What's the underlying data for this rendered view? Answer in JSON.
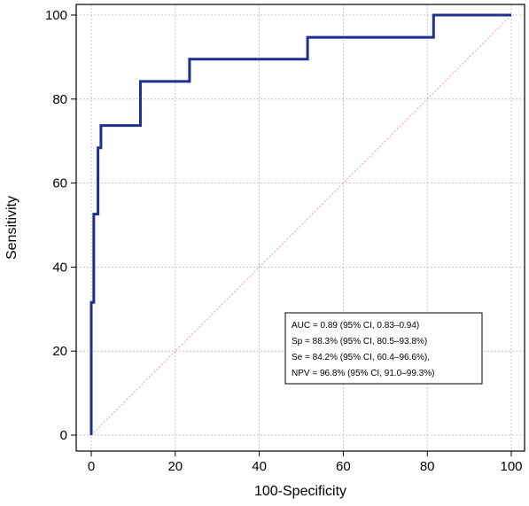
{
  "chart_data": {
    "type": "line",
    "title": "",
    "xlabel": "100-Specificity",
    "ylabel": "Sensitivity",
    "xlim": [
      0,
      100
    ],
    "ylim": [
      0,
      100
    ],
    "xticks": [
      0,
      20,
      40,
      60,
      80,
      100
    ],
    "yticks": [
      0,
      20,
      40,
      60,
      80,
      100
    ],
    "grid": true,
    "legend_placement": "bottom-right",
    "series": [
      {
        "color": "#1f2f8f",
        "style": "step",
        "x": [
          0,
          0,
          0.6,
          0.6,
          1.6,
          1.6,
          2.3,
          2.3,
          2.9,
          2.9,
          11.7,
          11.7,
          23.4,
          23.4,
          51.5,
          51.5,
          81.5,
          81.5,
          100
        ],
        "y": [
          0,
          31.6,
          31.6,
          52.6,
          52.6,
          68.4,
          68.4,
          73.7,
          73.7,
          73.7,
          73.7,
          84.2,
          84.2,
          89.5,
          89.5,
          94.7,
          94.7,
          100,
          100
        ]
      },
      {
        "color": "#e8a0a0",
        "style": "diagonal-reference",
        "x": [
          0,
          100
        ],
        "y": [
          0,
          100
        ]
      }
    ],
    "annotations": [
      "AUC = 0.89 (95% CI, 0.83–0.94)",
      "Sp = 88.3% (95% CI, 80.5–93.8%)",
      "Se = 84.2% (95% CI, 60.4–96.6%),",
      "NPV = 96.8% (95% CI, 91.0–99.3%)"
    ]
  }
}
